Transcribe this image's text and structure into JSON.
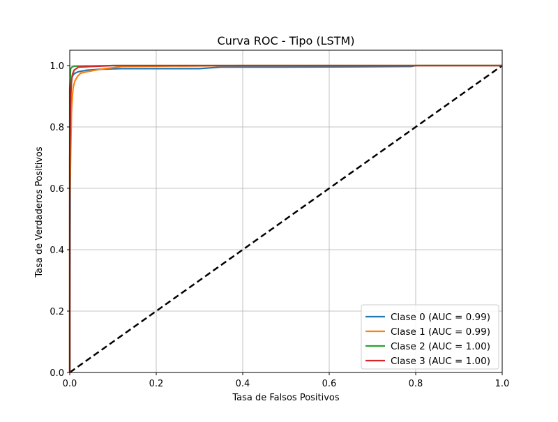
{
  "chart_data": {
    "type": "line",
    "title": "Curva ROC - Tipo (LSTM)",
    "xlabel": "Tasa de Falsos Positivos",
    "ylabel": "Tasa de Verdaderos Positivos",
    "xlim": [
      0.0,
      1.0
    ],
    "ylim": [
      0.0,
      1.05
    ],
    "xticks": [
      0.0,
      0.2,
      0.4,
      0.6,
      0.8,
      1.0
    ],
    "yticks": [
      0.0,
      0.2,
      0.4,
      0.6,
      0.8,
      1.0
    ],
    "xtick_labels": [
      "0.0",
      "0.2",
      "0.4",
      "0.6",
      "0.8",
      "1.0"
    ],
    "ytick_labels": [
      "0.0",
      "0.2",
      "0.4",
      "0.6",
      "0.8",
      "1.0"
    ],
    "grid": true,
    "legend_position": "lower-right",
    "series": [
      {
        "name": "Clase 0 (AUC = 0.99)",
        "color": "#1f77b4",
        "x": [
          0.0,
          0.0,
          0.001,
          0.002,
          0.003,
          0.005,
          0.008,
          0.012,
          0.02,
          0.04,
          0.07,
          0.12,
          0.2,
          0.3,
          0.35,
          0.5,
          0.79,
          0.8,
          1.0
        ],
        "y": [
          0.0,
          0.2,
          0.6,
          0.85,
          0.93,
          0.96,
          0.97,
          0.975,
          0.98,
          0.985,
          0.988,
          0.99,
          0.99,
          0.99,
          0.995,
          0.995,
          0.997,
          1.0,
          1.0
        ]
      },
      {
        "name": "Clase 1 (AUC = 0.99)",
        "color": "#ff7f0e",
        "x": [
          0.0,
          0.0,
          0.002,
          0.004,
          0.006,
          0.008,
          0.012,
          0.018,
          0.025,
          0.04,
          0.06,
          0.08,
          0.1,
          0.12,
          0.4,
          1.0
        ],
        "y": [
          0.0,
          0.55,
          0.7,
          0.85,
          0.9,
          0.93,
          0.95,
          0.965,
          0.975,
          0.98,
          0.985,
          0.99,
          0.993,
          0.997,
          1.0,
          1.0
        ]
      },
      {
        "name": "Clase 2 (AUC = 1.00)",
        "color": "#2ca02c",
        "x": [
          0.0,
          0.0,
          0.002,
          0.005,
          0.01,
          0.1,
          1.0
        ],
        "y": [
          0.0,
          0.92,
          0.99,
          0.995,
          0.998,
          1.0,
          1.0
        ]
      },
      {
        "name": "Clase 3 (AUC = 1.00)",
        "color": "#d62728",
        "x": [
          0.0,
          0.0,
          0.001,
          0.002,
          0.004,
          0.006,
          0.01,
          0.015,
          0.02,
          0.1,
          1.0
        ],
        "y": [
          0.0,
          0.7,
          0.8,
          0.9,
          0.95,
          0.97,
          0.985,
          0.99,
          0.995,
          1.0,
          1.0
        ]
      }
    ],
    "reference_line": {
      "x": [
        0.0,
        1.0
      ],
      "y": [
        0.0,
        1.0
      ],
      "color": "#000000",
      "style": "dashed"
    }
  }
}
